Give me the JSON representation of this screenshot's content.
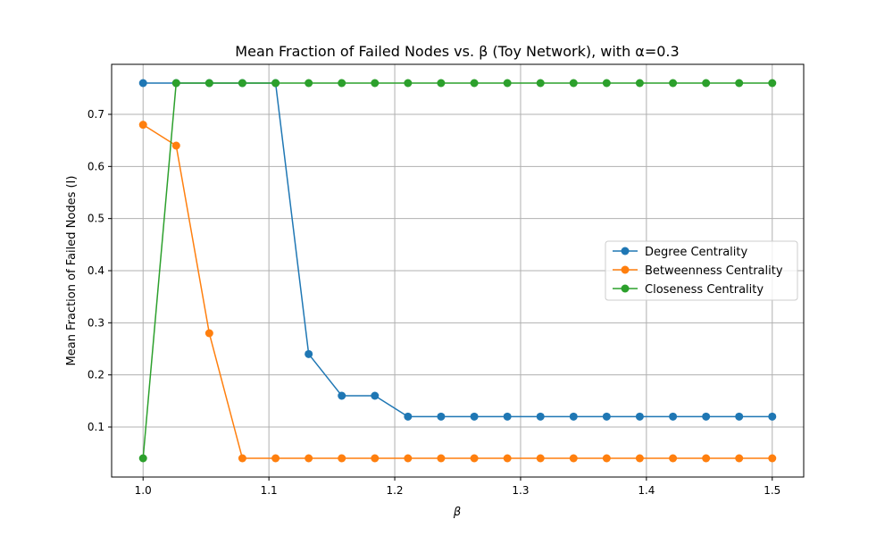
{
  "chart_data": {
    "type": "line",
    "title": "Mean Fraction of Failed Nodes vs. β (Toy Network), with α=0.3",
    "xlabel": "β",
    "ylabel": "Mean Fraction of Failed Nodes (I)",
    "xlim": [
      0.975,
      1.025
    ],
    "ylim": [
      0.004,
      0.796
    ],
    "xticks": [
      "1.0",
      "1.1",
      "1.2",
      "1.3",
      "1.4",
      "1.5"
    ],
    "yticks": [
      "0.1",
      "0.2",
      "0.3",
      "0.4",
      "0.5",
      "0.6",
      "0.7"
    ],
    "grid": true,
    "legend_position": "center-right",
    "x": [
      1.0,
      1.0263,
      1.0526,
      1.0789,
      1.1053,
      1.1316,
      1.1579,
      1.1842,
      1.2105,
      1.2368,
      1.2632,
      1.2895,
      1.3158,
      1.3421,
      1.3684,
      1.3947,
      1.4211,
      1.4474,
      1.4737,
      1.5
    ],
    "series": [
      {
        "name": "Degree Centrality",
        "color": "#1f77b4",
        "values": [
          0.76,
          0.76,
          0.76,
          0.76,
          0.76,
          0.24,
          0.16,
          0.16,
          0.12,
          0.12,
          0.12,
          0.12,
          0.12,
          0.12,
          0.12,
          0.12,
          0.12,
          0.12,
          0.12,
          0.12
        ]
      },
      {
        "name": "Betweenness Centrality",
        "color": "#ff7f0e",
        "values": [
          0.68,
          0.64,
          0.28,
          0.04,
          0.04,
          0.04,
          0.04,
          0.04,
          0.04,
          0.04,
          0.04,
          0.04,
          0.04,
          0.04,
          0.04,
          0.04,
          0.04,
          0.04,
          0.04,
          0.04
        ]
      },
      {
        "name": "Closeness Centrality",
        "color": "#2ca02c",
        "values": [
          0.04,
          0.76,
          0.76,
          0.76,
          0.76,
          0.76,
          0.76,
          0.76,
          0.76,
          0.76,
          0.76,
          0.76,
          0.76,
          0.76,
          0.76,
          0.76,
          0.76,
          0.76,
          0.76,
          0.76
        ]
      }
    ]
  }
}
